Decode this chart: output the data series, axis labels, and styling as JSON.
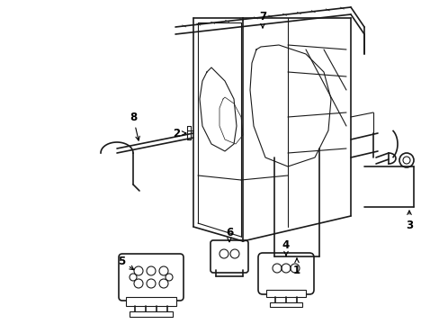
{
  "bg_color": "#ffffff",
  "line_color": "#1a1a1a",
  "figsize": [
    4.89,
    3.6
  ],
  "dpi": 100,
  "label_fontsize": 8.5
}
